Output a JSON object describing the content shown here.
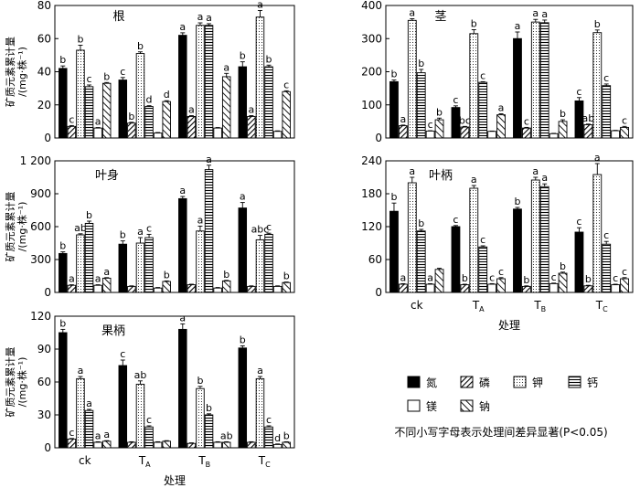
{
  "chart_data": [
    {
      "type": "bar",
      "title": "根",
      "ylabel": "矿质元素累计量 /(mg·株⁻¹)",
      "xlabel": "",
      "categories": [
        "ck",
        "TA",
        "TB",
        "TC"
      ],
      "ylim": [
        0,
        80
      ],
      "yticks": [
        0,
        20,
        40,
        60,
        80
      ],
      "series": [
        {
          "name": "氮",
          "values": [
            42,
            35,
            62,
            43
          ],
          "err": [
            1.5,
            1.5,
            1.5,
            3
          ],
          "labels": [
            "b",
            "c",
            "a",
            "b"
          ]
        },
        {
          "name": "磷",
          "values": [
            7,
            9,
            13,
            13
          ],
          "err": [
            0.5,
            0.5,
            0.5,
            0.5
          ],
          "labels": [
            "c",
            "b",
            "a",
            "a"
          ]
        },
        {
          "name": "钾",
          "values": [
            53,
            51,
            68,
            73
          ],
          "err": [
            3,
            1,
            1.5,
            4
          ],
          "labels": [
            "b",
            "b",
            "a",
            "a"
          ]
        },
        {
          "name": "钙",
          "values": [
            31,
            19,
            68,
            43
          ],
          "err": [
            1,
            0.5,
            1,
            1
          ],
          "labels": [
            "c",
            "d",
            "a",
            "b"
          ]
        },
        {
          "name": "镁",
          "values": [
            6,
            3,
            6,
            4
          ],
          "err": [
            0.3,
            0.3,
            0.3,
            0.3
          ],
          "labels": [
            "a",
            "",
            "",
            ""
          ]
        },
        {
          "name": "钠",
          "values": [
            33,
            22,
            37,
            28
          ],
          "err": [
            0.5,
            0.5,
            2,
            0.5
          ],
          "labels": [
            "b",
            "d",
            "a",
            "c"
          ]
        }
      ]
    },
    {
      "type": "bar",
      "title": "茎",
      "ylabel": "",
      "xlabel": "",
      "categories": [
        "ck",
        "TA",
        "TB",
        "TC"
      ],
      "ylim": [
        0,
        400
      ],
      "yticks": [
        0,
        100,
        200,
        300,
        400
      ],
      "series": [
        {
          "name": "氮",
          "values": [
            170,
            92,
            300,
            112
          ],
          "err": [
            5,
            5,
            20,
            10
          ],
          "labels": [
            "b",
            "c",
            "a",
            "c"
          ]
        },
        {
          "name": "磷",
          "values": [
            37,
            33,
            30,
            40
          ],
          "err": [
            2,
            2,
            2,
            2
          ],
          "labels": [
            "a",
            "bc",
            "c",
            "ab"
          ]
        },
        {
          "name": "钾",
          "values": [
            355,
            315,
            350,
            318
          ],
          "err": [
            5,
            12,
            8,
            8
          ],
          "labels": [
            "a",
            "b",
            "a",
            "b"
          ]
        },
        {
          "name": "钙",
          "values": [
            197,
            168,
            348,
            158
          ],
          "err": [
            10,
            2,
            8,
            5
          ],
          "labels": [
            "b",
            "c",
            "a",
            "c"
          ]
        },
        {
          "name": "镁",
          "values": [
            21,
            20,
            13,
            22
          ],
          "err": [
            1,
            1,
            1,
            1
          ],
          "labels": [
            "c",
            "",
            "",
            ""
          ]
        },
        {
          "name": "钠",
          "values": [
            55,
            70,
            50,
            32
          ],
          "err": [
            5,
            3,
            5,
            3
          ],
          "labels": [
            "b",
            "a",
            "b",
            "c"
          ]
        }
      ]
    },
    {
      "type": "bar",
      "title": "叶身",
      "ylabel": "矿质元素累计量 /(mg·株⁻¹)",
      "xlabel": "",
      "categories": [
        "ck",
        "TA",
        "TB",
        "TC"
      ],
      "ylim": [
        0,
        1200
      ],
      "yticks": [
        0,
        300,
        600,
        900,
        1200
      ],
      "ytick_labels": [
        "0",
        "300",
        "600",
        "900",
        "1 200"
      ],
      "series": [
        {
          "name": "氮",
          "values": [
            355,
            440,
            855,
            770
          ],
          "err": [
            15,
            30,
            20,
            50
          ],
          "labels": [
            "b",
            "b",
            "a",
            "a"
          ]
        },
        {
          "name": "磷",
          "values": [
            65,
            55,
            70,
            55
          ],
          "err": [
            5,
            5,
            5,
            5
          ],
          "labels": [
            "a",
            "",
            "",
            ""
          ]
        },
        {
          "name": "钾",
          "values": [
            525,
            450,
            560,
            480
          ],
          "err": [
            10,
            50,
            45,
            40
          ],
          "labels": [
            "ab",
            "a",
            "a",
            "abc"
          ]
        },
        {
          "name": "钙",
          "values": [
            630,
            500,
            1120,
            530
          ],
          "err": [
            20,
            30,
            40,
            10
          ],
          "labels": [
            "b",
            "c",
            "a",
            "c"
          ]
        },
        {
          "name": "镁",
          "values": [
            65,
            40,
            40,
            55
          ],
          "err": [
            5,
            5,
            5,
            5
          ],
          "labels": [
            "a",
            "",
            "",
            ""
          ]
        },
        {
          "name": "钠",
          "values": [
            130,
            100,
            105,
            90
          ],
          "err": [
            5,
            5,
            5,
            5
          ],
          "labels": [
            "a",
            "b",
            "b",
            "b"
          ]
        }
      ]
    },
    {
      "type": "bar",
      "title": "叶柄",
      "ylabel": "",
      "xlabel": "处理",
      "categories": [
        "ck",
        "TA",
        "TB",
        "TC"
      ],
      "ylim": [
        0,
        240
      ],
      "yticks": [
        0,
        60,
        120,
        180,
        240
      ],
      "series": [
        {
          "name": "氮",
          "values": [
            148,
            120,
            152,
            110
          ],
          "err": [
            15,
            2,
            3,
            8
          ],
          "labels": [
            "b",
            "c",
            "b",
            "c"
          ]
        },
        {
          "name": "磷",
          "values": [
            15,
            14,
            11,
            12
          ],
          "err": [
            1,
            1,
            1,
            1
          ],
          "labels": [
            "a",
            "b",
            "b",
            "b"
          ]
        },
        {
          "name": "钾",
          "values": [
            200,
            190,
            205,
            215
          ],
          "err": [
            10,
            5,
            5,
            20
          ],
          "labels": [
            "a",
            "a",
            "a",
            "a"
          ]
        },
        {
          "name": "钙",
          "values": [
            112,
            83,
            193,
            88
          ],
          "err": [
            3,
            2,
            5,
            5
          ],
          "labels": [
            "b",
            "c",
            "a",
            "c"
          ]
        },
        {
          "name": "镁",
          "values": [
            15,
            15,
            16,
            14
          ],
          "err": [
            1,
            1,
            1,
            1
          ],
          "labels": [
            "a",
            "c",
            "c",
            "c"
          ]
        },
        {
          "name": "钠",
          "values": [
            42,
            25,
            35,
            25
          ],
          "err": [
            2,
            2,
            2,
            2
          ],
          "labels": [
            "",
            "c",
            "b",
            "c"
          ]
        }
      ]
    },
    {
      "type": "bar",
      "title": "果柄",
      "ylabel": "矿质元素累计量 /(mg·株⁻¹)",
      "xlabel": "处理",
      "categories": [
        "ck",
        "TA",
        "TB",
        "TC"
      ],
      "ylim": [
        0,
        120
      ],
      "yticks": [
        0,
        30,
        60,
        90,
        120
      ],
      "series": [
        {
          "name": "氮",
          "values": [
            105,
            75,
            108,
            91
          ],
          "err": [
            3,
            5,
            5,
            2
          ],
          "labels": [
            "b",
            "c",
            "a",
            "b"
          ]
        },
        {
          "name": "磷",
          "values": [
            8,
            5,
            4,
            5
          ],
          "err": [
            0.5,
            0.5,
            0.5,
            0.5
          ],
          "labels": [
            "c",
            "",
            "",
            ""
          ]
        },
        {
          "name": "钾",
          "values": [
            63,
            58,
            54,
            63
          ],
          "err": [
            2,
            3,
            2,
            2
          ],
          "labels": [
            "a",
            "ab",
            "b",
            "a"
          ]
        },
        {
          "name": "钙",
          "values": [
            34,
            19,
            30,
            19
          ],
          "err": [
            1,
            1,
            1,
            1
          ],
          "labels": [
            "a",
            "c",
            "b",
            "c"
          ]
        },
        {
          "name": "镁",
          "values": [
            5,
            5,
            5,
            3
          ],
          "err": [
            0.5,
            0.5,
            0.5,
            0.5
          ],
          "labels": [
            "a",
            "",
            "",
            "d"
          ]
        },
        {
          "name": "钠",
          "values": [
            6,
            6,
            5,
            5
          ],
          "err": [
            0.5,
            0.5,
            0.5,
            0.5
          ],
          "labels": [
            "a",
            "",
            "ab",
            "b"
          ]
        }
      ]
    }
  ],
  "legend": {
    "items": [
      "氮",
      "磷",
      "钾",
      "钙",
      "镁",
      "钠"
    ],
    "note": "不同小写字母表示处理间差异显著(P<0.05)"
  }
}
